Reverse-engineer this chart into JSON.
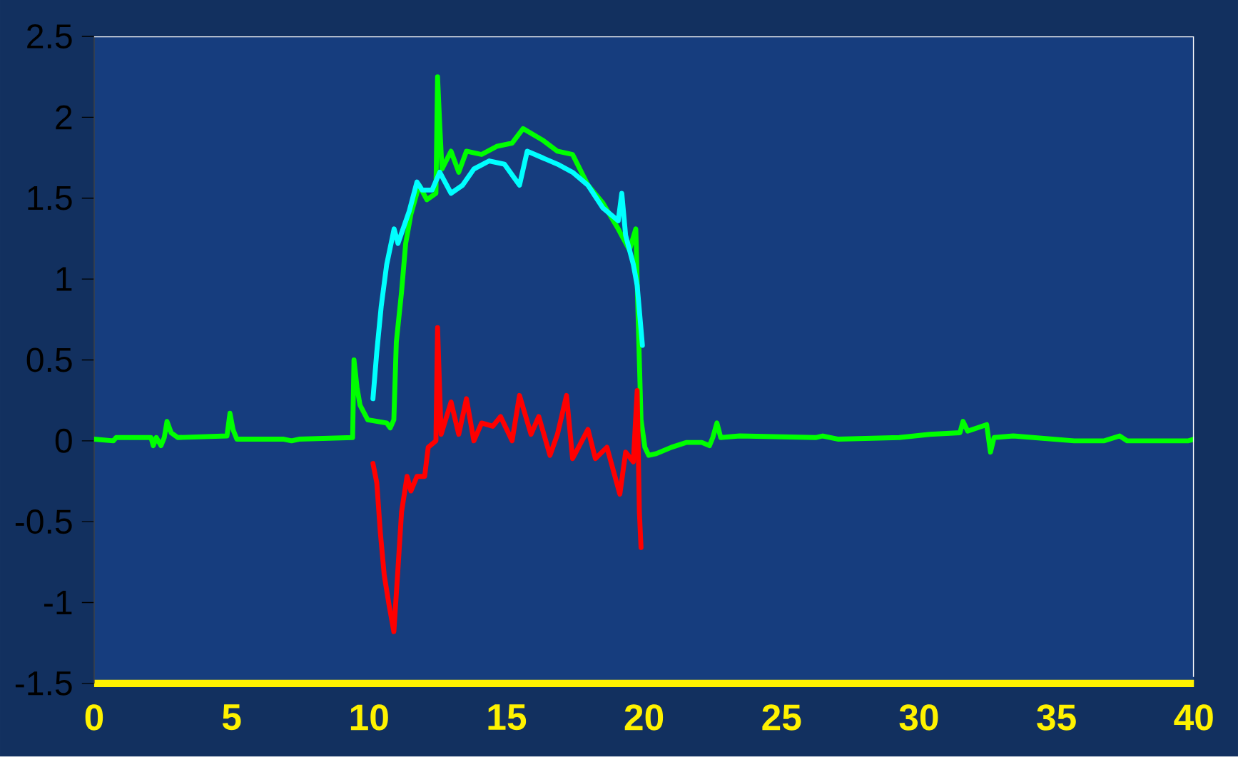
{
  "chart_data": {
    "type": "line",
    "xlim": [
      0,
      40
    ],
    "ylim": [
      -1.5,
      2.5
    ],
    "xticks": [
      0,
      5,
      10,
      15,
      20,
      25,
      30,
      35,
      40
    ],
    "yticks": [
      -1.5,
      -1,
      -0.5,
      0,
      0.5,
      1,
      1.5,
      2,
      2.5
    ],
    "grid": false,
    "marker": "none",
    "line_style": "solid",
    "series": [
      {
        "color": "#00ff00",
        "x": [
          0,
          0.7,
          0.8,
          2.07,
          2.15,
          2.26,
          2.43,
          2.55,
          2.65,
          2.8,
          3.04,
          4.83,
          4.94,
          5.05,
          5.19,
          6.9,
          7.18,
          7.45,
          9.4,
          9.45,
          9.56,
          9.67,
          9.95,
          10.64,
          10.77,
          10.9,
          10.99,
          11.18,
          11.33,
          11.52,
          11.82,
          12.1,
          12.43,
          12.49,
          12.57,
          12.65,
          12.98,
          13.26,
          13.54,
          14.09,
          14.64,
          15.2,
          15.6,
          16.3,
          16.85,
          17.4,
          17.96,
          18.5,
          19.06,
          19.47,
          19.7,
          19.78,
          19.89,
          20.03,
          20.17,
          20.44,
          21.0,
          21.55,
          22.1,
          22.38,
          22.5,
          22.65,
          22.79,
          23.48,
          26.24,
          26.5,
          27.07,
          29.28,
          30.39,
          31.49,
          31.6,
          31.77,
          32.46,
          32.6,
          32.73,
          33.43,
          35.64,
          36.74,
          37.3,
          37.57,
          39.8,
          40
        ],
        "values": [
          0.01,
          0.0,
          0.02,
          0.02,
          -0.03,
          0.02,
          -0.03,
          0.02,
          0.12,
          0.05,
          0.02,
          0.03,
          0.17,
          0.07,
          0.01,
          0.01,
          0.0,
          0.01,
          0.02,
          0.5,
          0.33,
          0.22,
          0.13,
          0.11,
          0.08,
          0.13,
          0.61,
          0.92,
          1.22,
          1.4,
          1.58,
          1.49,
          1.53,
          2.25,
          1.95,
          1.68,
          1.79,
          1.66,
          1.79,
          1.77,
          1.82,
          1.84,
          1.93,
          1.86,
          1.79,
          1.77,
          1.58,
          1.47,
          1.31,
          1.18,
          1.31,
          0.79,
          0.13,
          -0.04,
          -0.09,
          -0.08,
          -0.04,
          -0.01,
          -0.01,
          -0.03,
          0.02,
          0.11,
          0.02,
          0.03,
          0.02,
          0.03,
          0.01,
          0.02,
          0.04,
          0.05,
          0.12,
          0.06,
          0.1,
          -0.07,
          0.02,
          0.03,
          0.0,
          0.0,
          0.03,
          0.0,
          0.0,
          0.01
        ]
      },
      {
        "color": "#00ffff",
        "x": [
          10.14,
          10.28,
          10.44,
          10.64,
          10.91,
          11.05,
          11.46,
          11.74,
          11.93,
          12.29,
          12.57,
          12.98,
          13.4,
          13.81,
          14.37,
          14.92,
          15.47,
          15.75,
          16.3,
          16.85,
          17.4,
          17.96,
          18.5,
          19.06,
          19.19,
          19.33,
          19.61,
          19.75,
          19.94
        ],
        "values": [
          0.26,
          0.55,
          0.83,
          1.09,
          1.31,
          1.22,
          1.42,
          1.6,
          1.55,
          1.55,
          1.66,
          1.53,
          1.58,
          1.68,
          1.73,
          1.71,
          1.58,
          1.79,
          1.75,
          1.71,
          1.66,
          1.58,
          1.44,
          1.36,
          1.53,
          1.27,
          1.09,
          0.96,
          0.59
        ]
      },
      {
        "color": "#ff0000",
        "x": [
          10.14,
          10.28,
          10.41,
          10.55,
          10.72,
          10.9,
          11.05,
          11.18,
          11.38,
          11.52,
          11.74,
          12.02,
          12.15,
          12.43,
          12.49,
          12.62,
          12.98,
          13.26,
          13.54,
          13.81,
          14.09,
          14.5,
          14.78,
          15.2,
          15.47,
          15.89,
          16.17,
          16.58,
          16.85,
          17.18,
          17.4,
          17.96,
          18.23,
          18.65,
          19.12,
          19.33,
          19.61,
          19.75,
          19.83,
          19.89
        ],
        "values": [
          -0.14,
          -0.26,
          -0.57,
          -0.83,
          -1.01,
          -1.18,
          -0.79,
          -0.44,
          -0.22,
          -0.31,
          -0.22,
          -0.22,
          -0.04,
          0.0,
          0.7,
          0.04,
          0.24,
          0.04,
          0.26,
          0.0,
          0.11,
          0.09,
          0.15,
          0.0,
          0.28,
          0.04,
          0.15,
          -0.09,
          0.04,
          0.28,
          -0.11,
          0.07,
          -0.11,
          -0.04,
          -0.33,
          -0.07,
          -0.13,
          0.31,
          -0.44,
          -0.66
        ]
      }
    ]
  }
}
